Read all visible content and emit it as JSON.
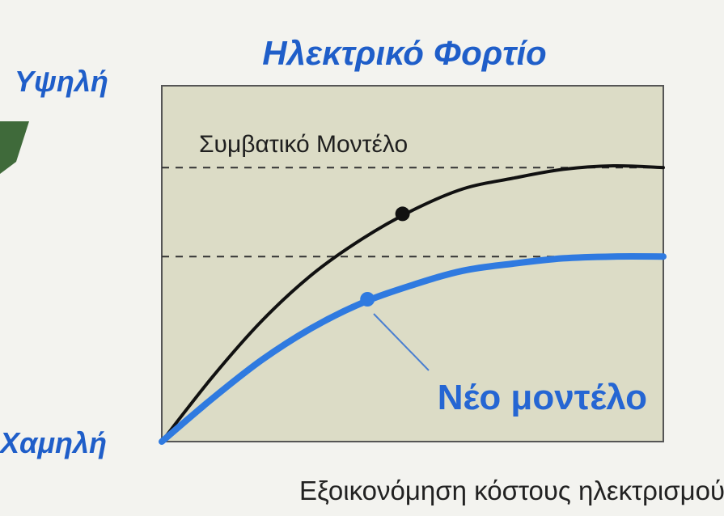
{
  "chart_data": {
    "type": "line",
    "title": "Ηλεκτρικό Φορτίο",
    "xlabel": "Εξοικονόμηση κόστους ηλεκτρισμού",
    "ylabel_top": "Υψηλή",
    "ylabel_bottom": "Χαμηλή",
    "xlim": [
      0,
      1
    ],
    "ylim": [
      0,
      1
    ],
    "grid": false,
    "reference_levels": [
      0.77,
      0.52
    ],
    "series": [
      {
        "name": "Συμβατικό Μοντέλο",
        "color": "#111111",
        "x": [
          0,
          0.1,
          0.2,
          0.3,
          0.4,
          0.5,
          0.6,
          0.7,
          0.8,
          0.9,
          1.0
        ],
        "y": [
          0,
          0.18,
          0.34,
          0.47,
          0.57,
          0.65,
          0.71,
          0.74,
          0.765,
          0.775,
          0.77
        ]
      },
      {
        "name": "Νέο μοντέλο",
        "color": "#2f7ae0",
        "x": [
          0,
          0.1,
          0.2,
          0.3,
          0.4,
          0.5,
          0.6,
          0.7,
          0.8,
          0.9,
          1.0
        ],
        "y": [
          0,
          0.12,
          0.23,
          0.32,
          0.39,
          0.44,
          0.48,
          0.5,
          0.515,
          0.52,
          0.52
        ]
      }
    ],
    "markers": [
      {
        "series": 0,
        "x": 0.48,
        "y": 0.64
      },
      {
        "series": 1,
        "x": 0.41,
        "y": 0.4
      }
    ]
  },
  "colors": {
    "plot_bg": "#dcdcc6",
    "accent": "#1f5ec9"
  }
}
